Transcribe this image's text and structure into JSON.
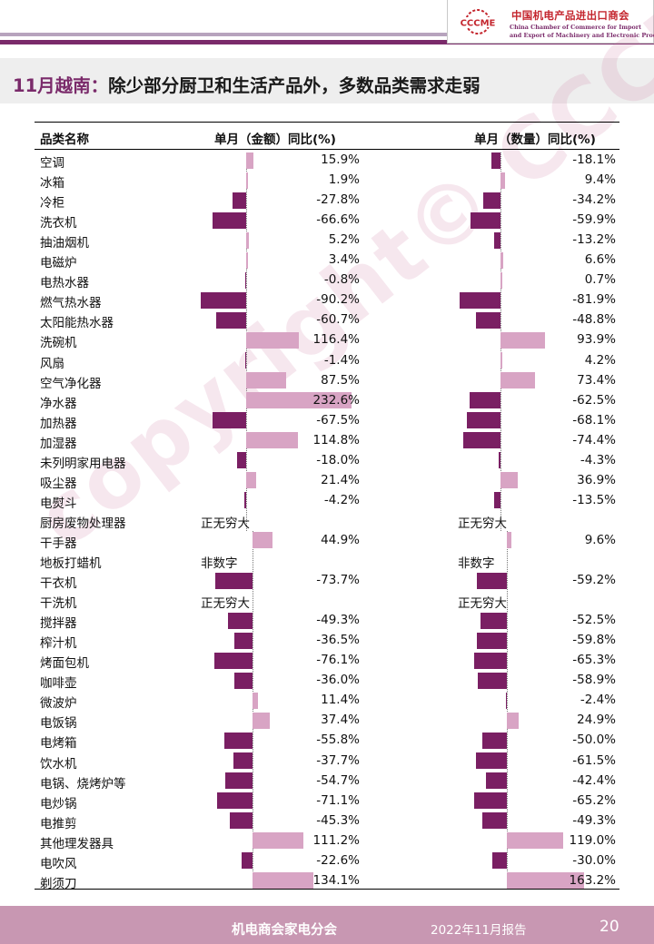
{
  "header": {
    "logo_text": "CCCME",
    "org_cn": "中国机电产品进出口商会",
    "org_en_line1": "China Chamber of Commerce for Import",
    "org_en_line2": "and Export of Machinery and Electronic Products"
  },
  "title": {
    "highlight": "11月越南：",
    "rest": "除少部分厨卫和生活产品外，多数品类需求走弱"
  },
  "watermark": "copyright© CCCME",
  "colors": {
    "negative": "#7a1f63",
    "positive": "#d8a4c4",
    "accent": "#7a2a6a",
    "footer": "#c897b2"
  },
  "chart_data": {
    "type": "table",
    "columns": [
      "品类名称",
      "单月（金额）同比(%)",
      "单月（数量）同比(%)"
    ],
    "units": "%",
    "rows": [
      {
        "category": "空调",
        "amount": 15.9,
        "quantity": -18.1
      },
      {
        "category": "冰箱",
        "amount": 1.9,
        "quantity": 9.4
      },
      {
        "category": "冷柜",
        "amount": -27.8,
        "quantity": -34.2
      },
      {
        "category": "洗衣机",
        "amount": -66.6,
        "quantity": -59.9
      },
      {
        "category": "抽油烟机",
        "amount": 5.2,
        "quantity": -13.2
      },
      {
        "category": "电磁炉",
        "amount": 3.4,
        "quantity": 6.6
      },
      {
        "category": "电热水器",
        "amount": -0.8,
        "quantity": 0.7
      },
      {
        "category": "燃气热水器",
        "amount": -90.2,
        "quantity": -81.9
      },
      {
        "category": "太阳能热水器",
        "amount": -60.7,
        "quantity": -48.8
      },
      {
        "category": "洗碗机",
        "amount": 116.4,
        "quantity": 93.9
      },
      {
        "category": "风扇",
        "amount": -1.4,
        "quantity": 4.2
      },
      {
        "category": "空气净化器",
        "amount": 87.5,
        "quantity": 73.4
      },
      {
        "category": "净水器",
        "amount": 232.6,
        "quantity": -62.5
      },
      {
        "category": "加热器",
        "amount": -67.5,
        "quantity": -68.1
      },
      {
        "category": "加湿器",
        "amount": 114.8,
        "quantity": -74.4
      },
      {
        "category": "未列明家用电器",
        "amount": -18.0,
        "quantity": -4.3
      },
      {
        "category": "吸尘器",
        "amount": 21.4,
        "quantity": 36.9
      },
      {
        "category": "电熨斗",
        "amount": -4.2,
        "quantity": -13.5
      },
      {
        "category": "厨房废物处理器",
        "amount": "正无穷大",
        "quantity": "正无穷大"
      },
      {
        "category": "干手器",
        "amount": 44.9,
        "quantity": 9.6
      },
      {
        "category": "地板打蜡机",
        "amount": "非数字",
        "quantity": "非数字"
      },
      {
        "category": "干衣机",
        "amount": -73.7,
        "quantity": -59.2
      },
      {
        "category": "干洗机",
        "amount": "正无穷大",
        "quantity": "正无穷大"
      },
      {
        "category": "搅拌器",
        "amount": -49.3,
        "quantity": -52.5
      },
      {
        "category": "榨汁机",
        "amount": -36.5,
        "quantity": -59.8
      },
      {
        "category": "烤面包机",
        "amount": -76.1,
        "quantity": -65.3
      },
      {
        "category": "咖啡壶",
        "amount": -36.0,
        "quantity": -58.9
      },
      {
        "category": "微波炉",
        "amount": 11.4,
        "quantity": -2.4
      },
      {
        "category": "电饭锅",
        "amount": 37.4,
        "quantity": 24.9
      },
      {
        "category": "电烤箱",
        "amount": -55.8,
        "quantity": -50.0
      },
      {
        "category": "饮水机",
        "amount": -37.7,
        "quantity": -61.5
      },
      {
        "category": "电锅、烧烤炉等",
        "amount": -54.7,
        "quantity": -42.4
      },
      {
        "category": "电炒锅",
        "amount": -71.1,
        "quantity": -65.2
      },
      {
        "category": "电推剪",
        "amount": -45.3,
        "quantity": -49.3
      },
      {
        "category": "其他理发器具",
        "amount": 111.2,
        "quantity": 119.0
      },
      {
        "category": "电吹风",
        "amount": -22.6,
        "quantity": -30.0
      },
      {
        "category": "剃须刀",
        "amount": 134.1,
        "quantity": 163.2
      }
    ]
  },
  "footer": {
    "center": "机电商会家电分会",
    "report": "2022年11月报告",
    "page": "20"
  }
}
